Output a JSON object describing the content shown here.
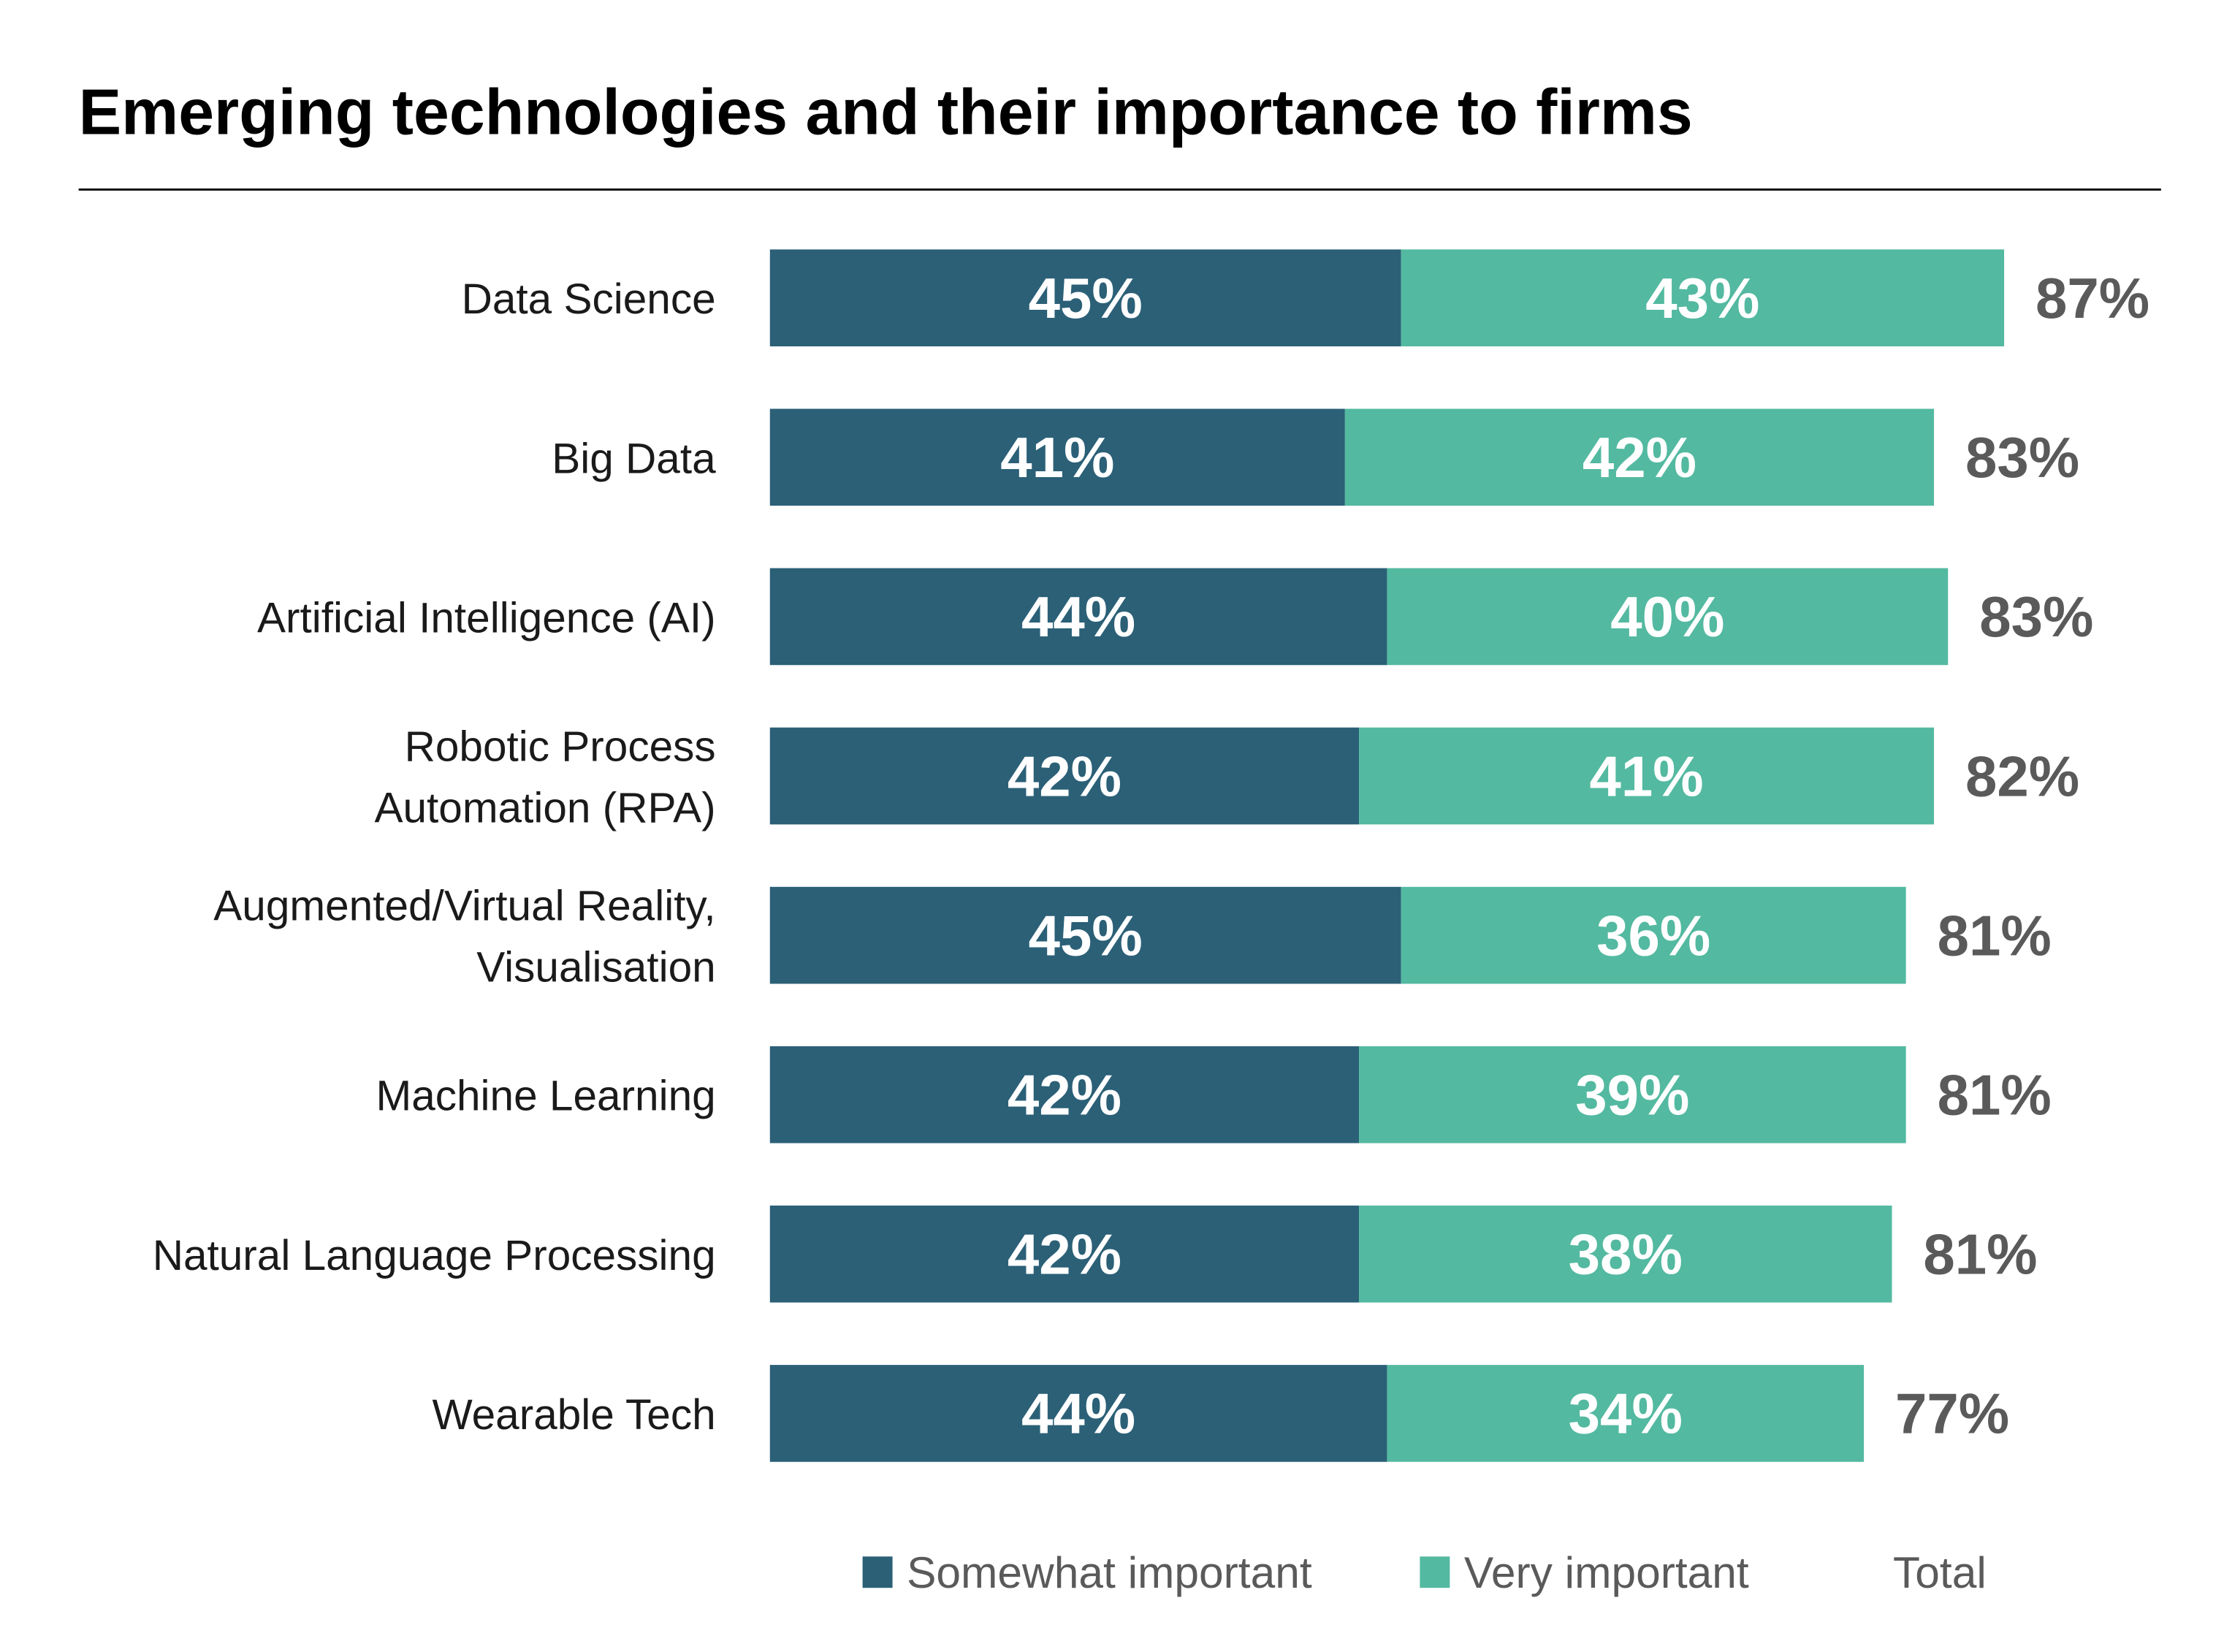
{
  "chart_data": {
    "type": "bar",
    "orientation": "horizontal",
    "stacked": true,
    "title": "Emerging technologies and their importance to firms",
    "categories": [
      [
        "Data Science"
      ],
      [
        "Big Data"
      ],
      [
        "Artificial Intelligence (AI)"
      ],
      [
        "Robotic Process",
        "Automation (RPA)"
      ],
      [
        "Augmented/Virtual Reality,",
        "Visualisation"
      ],
      [
        "Machine Learning"
      ],
      [
        "Natural Language Processing"
      ],
      [
        "Wearable Tech"
      ]
    ],
    "series": [
      {
        "name": "Somewhat important",
        "color": "#2b6077",
        "values": [
          45,
          41,
          44,
          42,
          45,
          42,
          42,
          44
        ]
      },
      {
        "name": "Very important",
        "color": "#53b9a0",
        "values": [
          43,
          42,
          40,
          41,
          36,
          39,
          38,
          34
        ]
      }
    ],
    "totals": {
      "name": "Total",
      "color": "#5a5a5a",
      "values": [
        87,
        83,
        83,
        82,
        81,
        81,
        81,
        77
      ]
    },
    "value_suffix": "%",
    "xlabel": "",
    "ylabel": "",
    "xlim": [
      0,
      100
    ],
    "grid": false,
    "legend_position": "bottom"
  }
}
